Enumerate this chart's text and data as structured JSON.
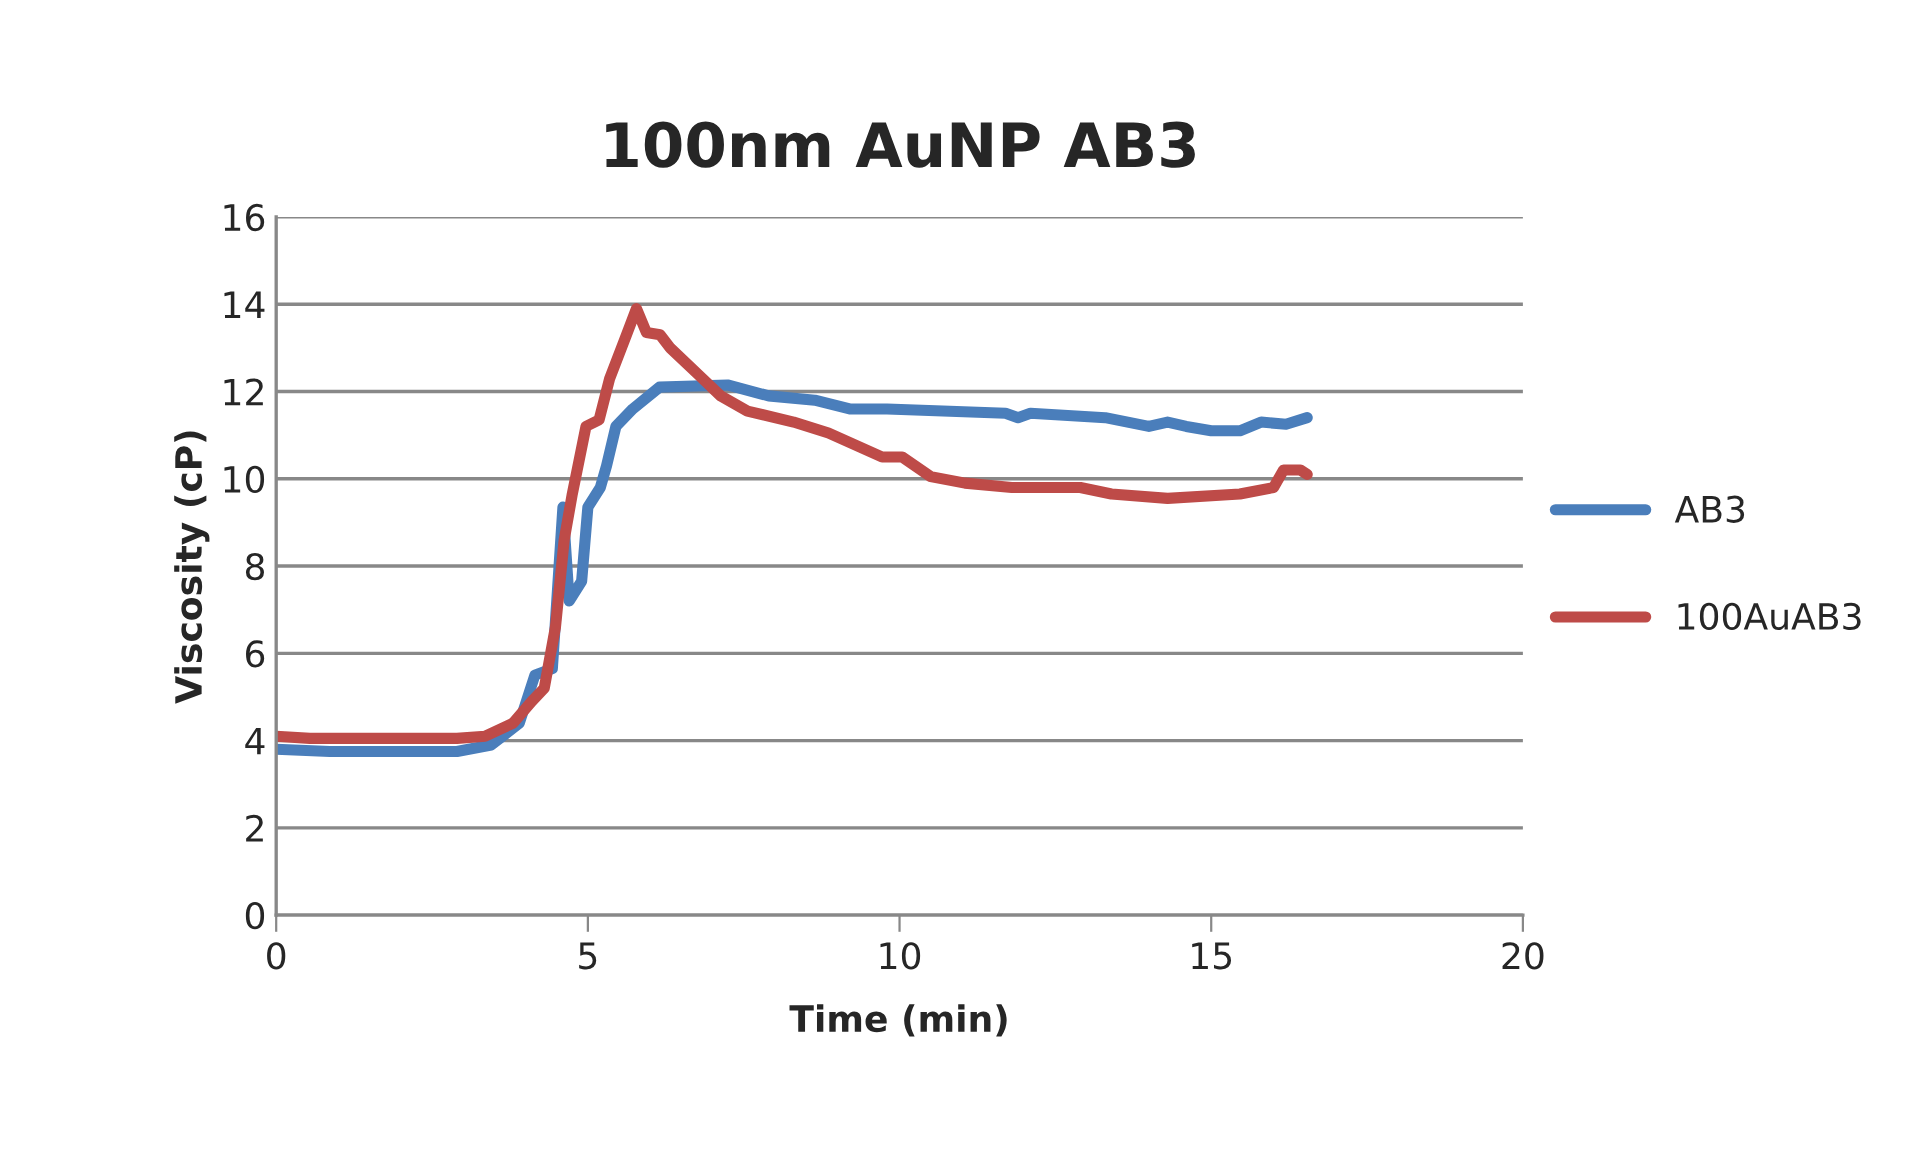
{
  "chart_data": {
    "type": "line",
    "title": "100nm AuNP AB3",
    "xlabel": "Time (min)",
    "ylabel": "Viscosity (cP)",
    "xlim": [
      0,
      20
    ],
    "xticks": [
      0,
      5,
      10,
      15,
      20
    ],
    "ylim": [
      0,
      16
    ],
    "yticks": [
      0,
      2,
      4,
      6,
      8,
      10,
      12,
      14,
      16
    ],
    "grid": "y",
    "legend": "right",
    "marker": "none",
    "line_style": "solid",
    "series": [
      {
        "name": "AB3",
        "color": "#4a7ebb",
        "x": [
          0,
          0.86,
          2.9,
          3.45,
          3.9,
          4.15,
          4.43,
          4.6,
          4.7,
          4.9,
          5.0,
          5.2,
          5.3,
          5.45,
          5.72,
          6.15,
          7.24,
          7.9,
          8.64,
          9.2,
          9.8,
          11.7,
          11.9,
          12.1,
          13.3,
          14.0,
          14.3,
          14.6,
          15.0,
          15.46,
          15.8,
          16.2,
          16.54
        ],
        "values": [
          3.8,
          3.75,
          3.75,
          3.9,
          4.4,
          5.5,
          5.65,
          9.35,
          7.2,
          7.65,
          9.35,
          9.8,
          10.3,
          11.2,
          11.6,
          12.1,
          12.15,
          11.9,
          11.8,
          11.6,
          11.6,
          11.5,
          11.4,
          11.5,
          11.4,
          11.2,
          11.3,
          11.2,
          11.1,
          11.1,
          11.3,
          11.25,
          11.4
        ]
      },
      {
        "name": "100AuAB3",
        "color": "#be4b48",
        "x": [
          0,
          0.54,
          2.9,
          3.35,
          3.8,
          4.1,
          4.3,
          4.48,
          4.62,
          4.75,
          4.97,
          5.18,
          5.35,
          5.62,
          5.78,
          5.94,
          6.16,
          6.32,
          6.8,
          7.13,
          7.56,
          8.3,
          8.86,
          9.72,
          10.04,
          10.5,
          11.05,
          11.8,
          12.9,
          13.4,
          14.3,
          15.46,
          16.0,
          16.16,
          16.43,
          16.54
        ],
        "values": [
          4.1,
          4.05,
          4.05,
          4.1,
          4.4,
          4.9,
          5.2,
          6.6,
          8.6,
          9.65,
          11.2,
          11.35,
          12.3,
          13.3,
          13.9,
          13.35,
          13.3,
          13.0,
          12.35,
          11.9,
          11.55,
          11.3,
          11.05,
          10.5,
          10.5,
          10.05,
          9.9,
          9.8,
          9.8,
          9.65,
          9.55,
          9.65,
          9.8,
          10.2,
          10.2,
          10.1
        ]
      }
    ]
  }
}
